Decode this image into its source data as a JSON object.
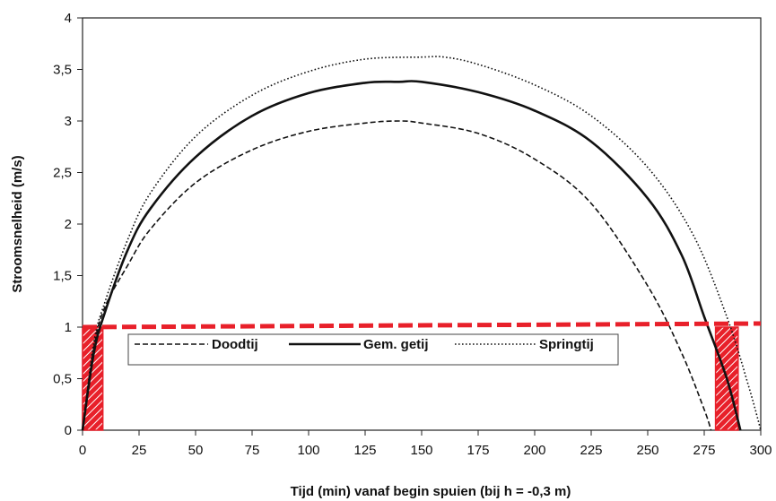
{
  "chart_data": {
    "type": "line",
    "title": "",
    "xlabel": "Tijd (min) vanaf begin spuien (bij h = -0,3 m)",
    "ylabel": "Stroomsnelheid (m/s)",
    "xlim": [
      0,
      300
    ],
    "ylim": [
      0,
      4
    ],
    "x_ticks": [
      0,
      25,
      50,
      75,
      100,
      125,
      150,
      175,
      200,
      225,
      250,
      275,
      300
    ],
    "y_ticks": [
      0,
      0.5,
      1,
      1.5,
      2,
      2.5,
      3,
      3.5,
      4
    ],
    "y_tick_labels": [
      "0",
      "0,5",
      "1",
      "1,5",
      "2",
      "2,5",
      "3",
      "3,5",
      "4"
    ],
    "grid": false,
    "legend_position": "inside, below threshold line",
    "series": [
      {
        "name": "Doodtij",
        "style": "dashed",
        "x": [
          0,
          5,
          10,
          20,
          30,
          50,
          75,
          100,
          125,
          140,
          150,
          175,
          200,
          225,
          250,
          265,
          275,
          278
        ],
        "y": [
          0,
          0.8,
          1.2,
          1.6,
          1.95,
          2.4,
          2.72,
          2.9,
          2.98,
          3.0,
          2.98,
          2.88,
          2.63,
          2.2,
          1.4,
          0.75,
          0.2,
          0
        ]
      },
      {
        "name": "Gem. getij",
        "style": "solid",
        "x": [
          0,
          5,
          10,
          20,
          30,
          50,
          75,
          100,
          125,
          140,
          150,
          175,
          200,
          225,
          250,
          265,
          275,
          285,
          291
        ],
        "y": [
          0,
          0.75,
          1.15,
          1.75,
          2.15,
          2.65,
          3.05,
          3.27,
          3.37,
          3.38,
          3.38,
          3.28,
          3.1,
          2.8,
          2.25,
          1.7,
          1.1,
          0.5,
          0
        ]
      },
      {
        "name": "Springtij",
        "style": "dotted",
        "x": [
          0,
          5,
          10,
          20,
          30,
          50,
          75,
          100,
          125,
          150,
          160,
          175,
          200,
          225,
          250,
          270,
          285,
          295,
          300
        ],
        "y": [
          0,
          0.85,
          1.25,
          1.85,
          2.3,
          2.85,
          3.25,
          3.48,
          3.6,
          3.62,
          3.62,
          3.55,
          3.35,
          3.05,
          2.55,
          1.9,
          1.1,
          0.4,
          0
        ]
      }
    ],
    "threshold": {
      "y": 1,
      "color": "#e8202a",
      "style": "dashed"
    },
    "highlight_regions": [
      {
        "x_start": 0,
        "x_end": 9,
        "color": "#e8202a",
        "pattern": "hatched"
      },
      {
        "x_start": 280,
        "x_end": 290,
        "color": "#e8202a",
        "pattern": "hatched"
      }
    ]
  }
}
